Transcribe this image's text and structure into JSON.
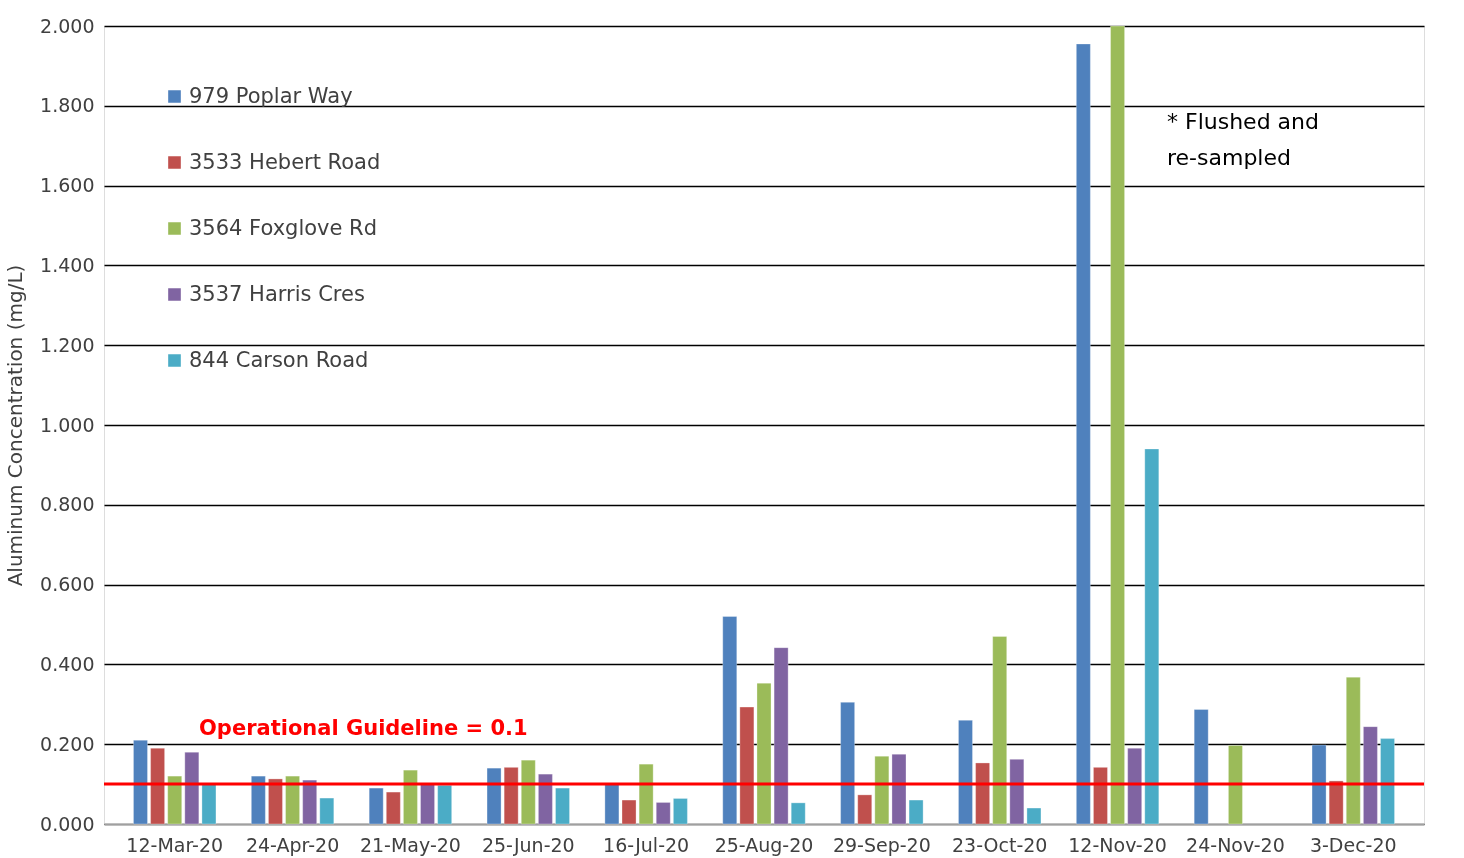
{
  "chart_data": {
    "type": "bar",
    "ylabel": "Aluminum Concentration (mg/L)",
    "categories": [
      "12-Mar-20",
      "24-Apr-20",
      "21-May-20",
      "25-Jun-20",
      "16-Jul-20",
      "25-Aug-20",
      "29-Sep-20",
      "23-Oct-20",
      "12-Nov-20",
      "24-Nov-20",
      "3-Dec-20"
    ],
    "series": [
      {
        "name": "979 Poplar Way",
        "color": "#4f81bd",
        "values": [
          0.21,
          0.12,
          0.09,
          0.14,
          0.1,
          0.52,
          0.305,
          0.26,
          1.955,
          0.287,
          0.198
        ]
      },
      {
        "name": "3533 Hebert Road",
        "color": "#c0504d",
        "values": [
          0.19,
          0.113,
          0.08,
          0.142,
          0.06,
          0.293,
          0.073,
          0.153,
          0.142,
          null,
          0.108
        ]
      },
      {
        "name": "3564 Foxglove Rd",
        "color": "#9bbb59",
        "values": [
          0.12,
          0.12,
          0.135,
          0.16,
          0.15,
          0.353,
          0.17,
          0.47,
          2.0,
          0.197,
          0.368
        ]
      },
      {
        "name": "3537 Harris Cres",
        "color": "#8064a2",
        "values": [
          0.18,
          0.11,
          0.1,
          0.125,
          0.054,
          0.442,
          0.175,
          0.162,
          0.19,
          null,
          0.244
        ]
      },
      {
        "name": "844 Carson Road",
        "color": "#4bacc6",
        "values": [
          0.1,
          0.065,
          0.097,
          0.09,
          0.064,
          0.053,
          0.06,
          0.04,
          0.94,
          null,
          0.214
        ]
      }
    ],
    "ylim": [
      0,
      2.0
    ],
    "yticks": [
      {
        "value": 0,
        "label": "0.000"
      },
      {
        "value": 0.2,
        "label": "0.200"
      },
      {
        "value": 0.4,
        "label": "0.400"
      },
      {
        "value": 0.6,
        "label": "0.600"
      },
      {
        "value": 0.8,
        "label": "0.800"
      },
      {
        "value": 1.0,
        "label": "1.000"
      },
      {
        "value": 1.2,
        "label": "1.200"
      },
      {
        "value": 1.4,
        "label": "1.400"
      },
      {
        "value": 1.6,
        "label": "1.600"
      },
      {
        "value": 1.8,
        "label": "1.800"
      },
      {
        "value": 2.0,
        "label": "2.000"
      }
    ],
    "grid": "y",
    "legend": "top left",
    "ref_lines": [
      {
        "axis": "y",
        "value": 0.1,
        "label": "Operational Guideline = 0.1",
        "color": "#ff0000"
      }
    ],
    "annotations": [
      "* Flushed and\nre-sampled"
    ]
  }
}
